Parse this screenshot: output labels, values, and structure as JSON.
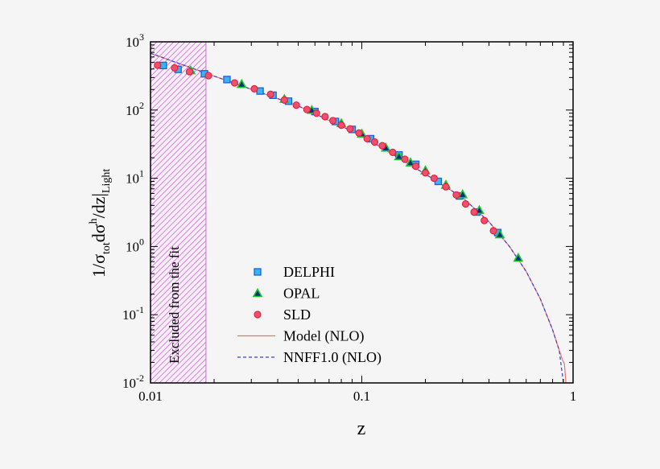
{
  "chart_data": {
    "type": "scatter",
    "xlabel": "z",
    "ylabel": {
      "main": "1/σ",
      "sub1": "tot",
      "mid": "dσ",
      "sup": "h",
      "tail": "/dz|",
      "sub2": "Light"
    },
    "xscale": "log",
    "yscale": "log",
    "xlim": [
      0.01,
      1
    ],
    "ylim": [
      0.01,
      1000
    ],
    "x_ticks": [
      {
        "v": 0.01,
        "label": "0.01"
      },
      {
        "v": 0.1,
        "label": "0.1"
      },
      {
        "v": 1,
        "label": "1"
      }
    ],
    "y_ticks": [
      {
        "v": 1000,
        "base": "10",
        "exp": "3"
      },
      {
        "v": 100,
        "base": "10",
        "exp": "2"
      },
      {
        "v": 10,
        "base": "10",
        "exp": "1"
      },
      {
        "v": 1,
        "base": "10",
        "exp": "0"
      },
      {
        "v": 0.1,
        "base": "10",
        "exp": "-1"
      },
      {
        "v": 0.01,
        "base": "10",
        "exp": "-2"
      }
    ],
    "grid": false,
    "legend_placement": "bottom-center",
    "excluded_region": {
      "x_range": [
        0.01,
        0.0183
      ],
      "label": "Excluded from the fit",
      "color": "#d070d8"
    },
    "series": [
      {
        "name": "DELPHI",
        "marker": "square",
        "color": "#1f5fe0",
        "fill": "#36b6f0",
        "points": [
          [
            0.0115,
            450
          ],
          [
            0.0135,
            395
          ],
          [
            0.018,
            340
          ],
          [
            0.023,
            280
          ],
          [
            0.033,
            190
          ],
          [
            0.038,
            165
          ],
          [
            0.045,
            135
          ],
          [
            0.06,
            95
          ],
          [
            0.075,
            68
          ],
          [
            0.09,
            52
          ],
          [
            0.11,
            38
          ],
          [
            0.15,
            22
          ],
          [
            0.18,
            16
          ],
          [
            0.23,
            9
          ],
          [
            0.29,
            5.5
          ],
          [
            0.35,
            3.2
          ],
          [
            0.44,
            1.6
          ]
        ]
      },
      {
        "name": "OPAL",
        "marker": "triangle",
        "color": "#18c828",
        "fill": "#0a2a8a",
        "points": [
          [
            0.0155,
            380
          ],
          [
            0.027,
            240
          ],
          [
            0.043,
            145
          ],
          [
            0.058,
            100
          ],
          [
            0.08,
            64
          ],
          [
            0.1,
            45
          ],
          [
            0.13,
            28
          ],
          [
            0.15,
            21
          ],
          [
            0.17,
            17
          ],
          [
            0.2,
            13
          ],
          [
            0.25,
            8
          ],
          [
            0.3,
            5.8
          ],
          [
            0.36,
            3.4
          ],
          [
            0.45,
            1.5
          ],
          [
            0.55,
            0.68
          ]
        ]
      },
      {
        "name": "SLD",
        "marker": "circle",
        "color": "#e8203a",
        "fill": "#f05070",
        "points": [
          [
            0.0108,
            455
          ],
          [
            0.013,
            415
          ],
          [
            0.0153,
            365
          ],
          [
            0.0188,
            320
          ],
          [
            0.025,
            250
          ],
          [
            0.031,
            205
          ],
          [
            0.037,
            170
          ],
          [
            0.043,
            140
          ],
          [
            0.049,
            118
          ],
          [
            0.055,
            102
          ],
          [
            0.061,
            90
          ],
          [
            0.067,
            80
          ],
          [
            0.073,
            70
          ],
          [
            0.08,
            60
          ],
          [
            0.088,
            53
          ],
          [
            0.097,
            46
          ],
          [
            0.106,
            38
          ],
          [
            0.115,
            34
          ],
          [
            0.125,
            30
          ],
          [
            0.14,
            24
          ],
          [
            0.16,
            19
          ],
          [
            0.18,
            15
          ],
          [
            0.2,
            12
          ],
          [
            0.22,
            10
          ],
          [
            0.25,
            7.5
          ],
          [
            0.28,
            5.7
          ],
          [
            0.31,
            4.2
          ],
          [
            0.34,
            3.2
          ],
          [
            0.38,
            2.4
          ],
          [
            0.42,
            1.7
          ]
        ]
      },
      {
        "name": "Model (NLO)",
        "type": "line",
        "color": "#f07070",
        "dash": "solid",
        "points": [
          [
            0.01,
            680
          ],
          [
            0.02,
            315
          ],
          [
            0.05,
            115
          ],
          [
            0.1,
            42
          ],
          [
            0.2,
            11.5
          ],
          [
            0.3,
            5.2
          ],
          [
            0.4,
            2.3
          ],
          [
            0.5,
            1.0
          ],
          [
            0.6,
            0.43
          ],
          [
            0.7,
            0.17
          ],
          [
            0.8,
            0.06
          ],
          [
            0.86,
            0.03
          ],
          [
            0.89,
            0.022
          ],
          [
            0.91,
            0.019
          ],
          [
            0.925,
            0.01
          ]
        ]
      },
      {
        "name": "NNFF1.0 (NLO)",
        "type": "line",
        "color": "#3040e0",
        "dash": "dashed",
        "points": [
          [
            0.01,
            680
          ],
          [
            0.02,
            315
          ],
          [
            0.05,
            115
          ],
          [
            0.1,
            42
          ],
          [
            0.2,
            11.5
          ],
          [
            0.3,
            5.2
          ],
          [
            0.4,
            2.3
          ],
          [
            0.5,
            1.0
          ],
          [
            0.6,
            0.43
          ],
          [
            0.7,
            0.17
          ],
          [
            0.8,
            0.06
          ],
          [
            0.86,
            0.03
          ],
          [
            0.9,
            0.01
          ]
        ]
      }
    ]
  }
}
